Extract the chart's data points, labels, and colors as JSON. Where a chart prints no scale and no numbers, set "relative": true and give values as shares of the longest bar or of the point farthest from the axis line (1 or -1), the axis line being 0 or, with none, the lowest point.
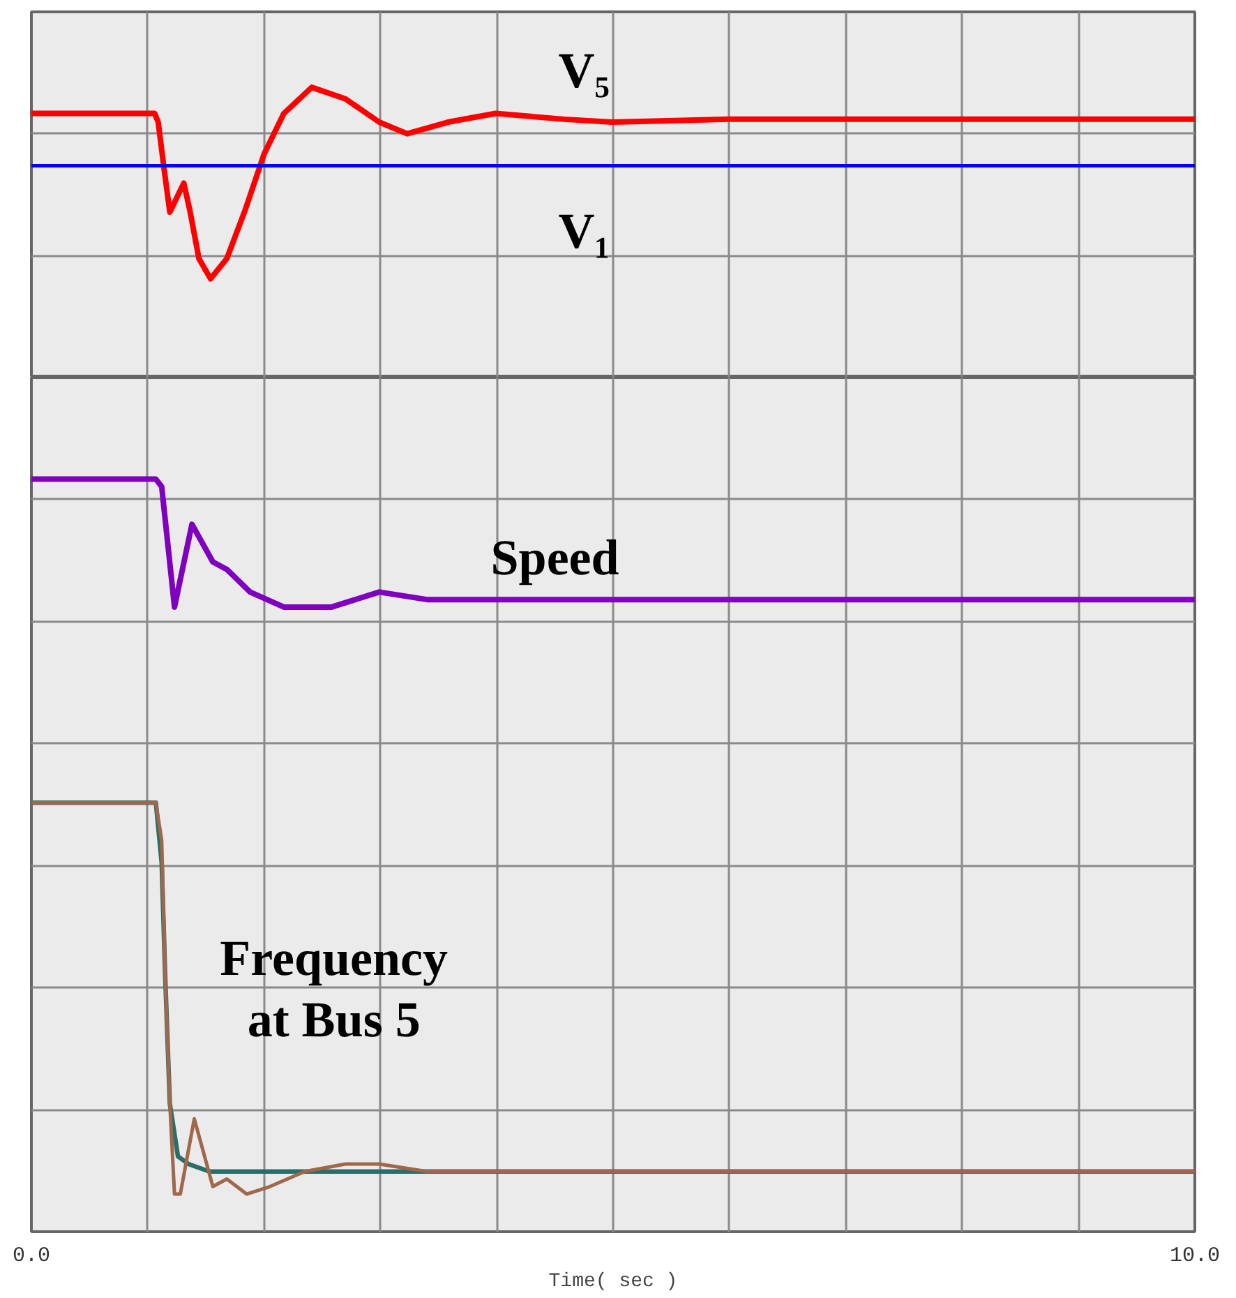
{
  "chart_data": [
    {
      "type": "line",
      "relative": true,
      "tick_labels": false,
      "grid": true,
      "xlim": [
        0,
        10
      ],
      "xticks": [
        {
          "value": 0,
          "label": null
        },
        {
          "value": 1,
          "label": null
        },
        {
          "value": 2,
          "label": null
        },
        {
          "value": 3,
          "label": null
        },
        {
          "value": 4,
          "label": null
        },
        {
          "value": 5,
          "label": null
        },
        {
          "value": 6,
          "label": null
        },
        {
          "value": 7,
          "label": null
        },
        {
          "value": 8,
          "label": null
        },
        {
          "value": 9,
          "label": null
        },
        {
          "value": 10,
          "label": null
        }
      ],
      "series": [
        {
          "name": "V₅",
          "color": "#ff0000",
          "x": [
            0,
            1.06,
            1.09,
            1.14,
            1.19,
            1.31,
            1.36,
            1.44,
            1.54,
            1.68,
            1.84,
            2.0,
            2.17,
            2.41,
            2.7,
            2.99,
            3.23,
            3.58,
            3.99,
            4.58,
            4.99,
            5.99,
            10
          ],
          "values": [
            0.91,
            0.91,
            0.88,
            0.72,
            0.57,
            0.67,
            0.58,
            0.41,
            0.34,
            0.41,
            0.58,
            0.77,
            0.91,
            1,
            0.96,
            0.88,
            0.84,
            0.88,
            0.91,
            0.89,
            0.88,
            0.89,
            0.89
          ]
        },
        {
          "name": "V₁",
          "color": "#0000ff",
          "x": [
            0,
            10
          ],
          "values": [
            0.73,
            0.73
          ]
        }
      ]
    },
    {
      "type": "line",
      "relative": true,
      "tick_labels": "x",
      "grid": true,
      "xlabel": "Time( sec )",
      "xlim": [
        0,
        10
      ],
      "xticks": [
        {
          "value": 0,
          "label": "0.0"
        },
        {
          "value": 1,
          "label": null
        },
        {
          "value": 2,
          "label": null
        },
        {
          "value": 3,
          "label": null
        },
        {
          "value": 4,
          "label": null
        },
        {
          "value": 5,
          "label": null
        },
        {
          "value": 6,
          "label": null
        },
        {
          "value": 7,
          "label": null
        },
        {
          "value": 8,
          "label": null
        },
        {
          "value": 9,
          "label": null
        },
        {
          "value": 10,
          "label": "10.0"
        }
      ],
      "series": [
        {
          "name": "Speed",
          "color": "#8000c0",
          "x": [
            0,
            1.07,
            1.12,
            1.23,
            1.38,
            1.56,
            1.68,
            1.88,
            2.17,
            2.58,
            2.99,
            3.4,
            3.76,
            4.58,
            5.75,
            10
          ],
          "values": [
            1,
            1,
            0.99,
            0.83,
            0.94,
            0.89,
            0.88,
            0.85,
            0.83,
            0.83,
            0.85,
            0.84,
            0.84,
            0.84,
            0.84,
            0.84
          ]
        },
        {
          "color": "#2a6e6a",
          "x": [
            0,
            1.07,
            1.12,
            1.15,
            1.19,
            1.26,
            1.35,
            1.53,
            10
          ],
          "values": [
            0.57,
            0.57,
            0.49,
            0.34,
            0.17,
            0.1,
            0.09,
            0.08,
            0.08
          ]
        },
        {
          "name": "Frequency\nat Bus 5",
          "color": "#a0674b",
          "x": [
            0,
            1.07,
            1.12,
            1.15,
            1.19,
            1.23,
            1.28,
            1.4,
            1.56,
            1.68,
            1.85,
            2.05,
            2.35,
            2.7,
            2.99,
            3.4,
            3.99,
            10
          ],
          "values": [
            0.57,
            0.57,
            0.52,
            0.34,
            0.17,
            0.05,
            0.05,
            0.15,
            0.06,
            0.07,
            0.05,
            0.06,
            0.08,
            0.09,
            0.09,
            0.08,
            0.08,
            0.08
          ]
        }
      ]
    }
  ]
}
